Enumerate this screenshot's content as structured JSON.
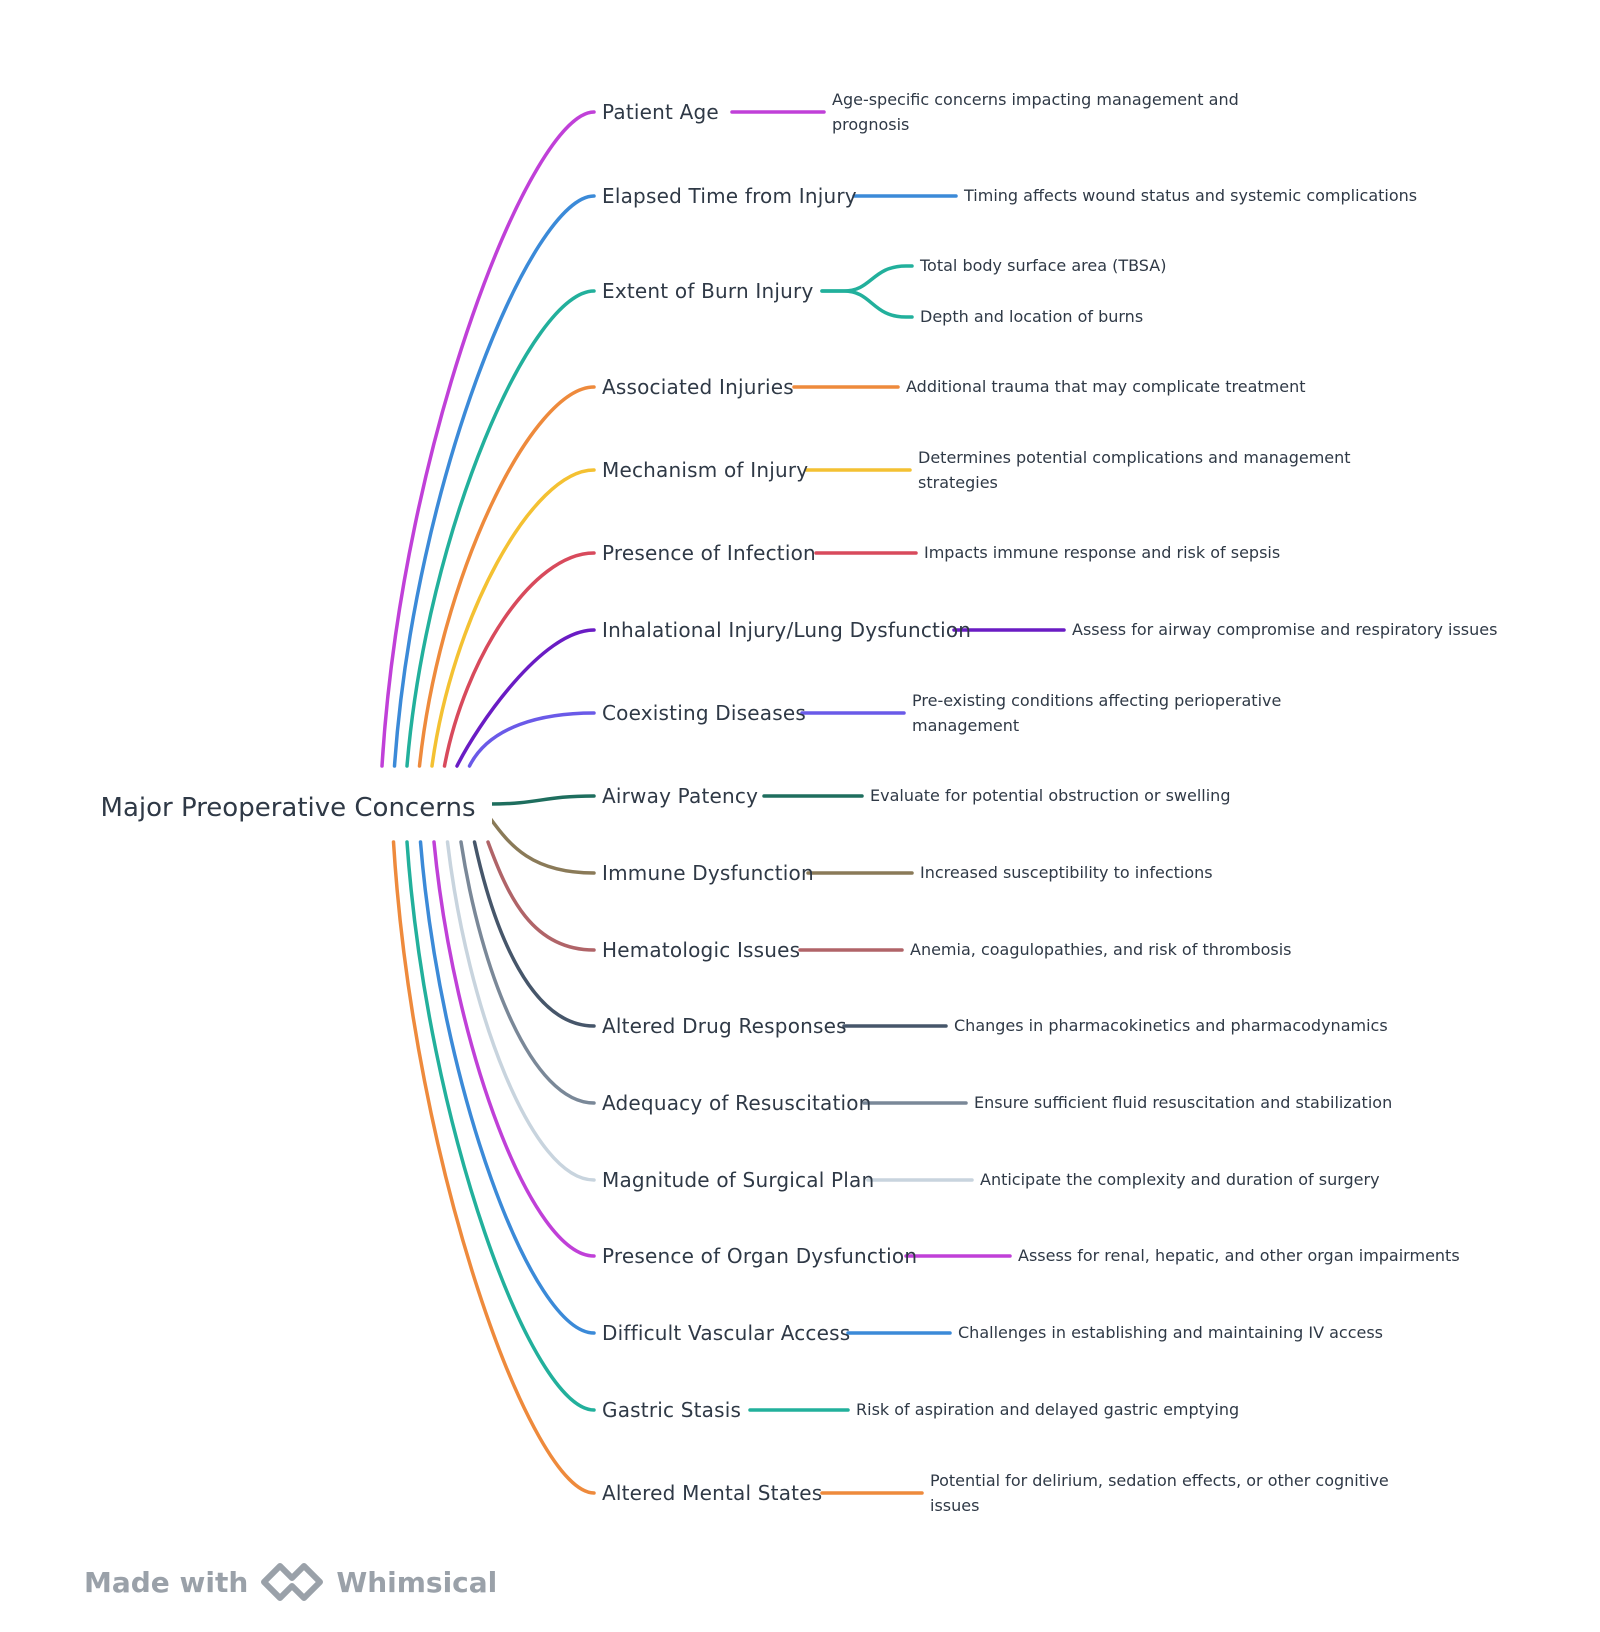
{
  "root": {
    "label": "Major Preoperative Concerns"
  },
  "topics": [
    {
      "label": "Patient Age",
      "color": "#c040d8",
      "details": [
        "Age-specific concerns impacting management and prognosis"
      ]
    },
    {
      "label": "Elapsed Time from Injury",
      "color": "#3b8ad8",
      "details": [
        "Timing affects wound status and systemic complications"
      ]
    },
    {
      "label": "Extent of Burn Injury",
      "color": "#22b09c",
      "details": [
        "Total body surface area (TBSA)",
        "Depth and location of burns"
      ]
    },
    {
      "label": "Associated Injuries",
      "color": "#ee8a3c",
      "details": [
        "Additional trauma that may complicate treatment"
      ]
    },
    {
      "label": "Mechanism of Injury",
      "color": "#f4c132",
      "details": [
        "Determines potential complications and management strategies"
      ]
    },
    {
      "label": "Presence of Infection",
      "color": "#d84a5c",
      "details": [
        "Impacts immune response and risk of sepsis"
      ]
    },
    {
      "label": "Inhalational Injury/Lung Dysfunction",
      "color": "#6a1cc4",
      "details": [
        "Assess for airway compromise and respiratory issues"
      ]
    },
    {
      "label": "Coexisting Diseases",
      "color": "#6a5ae8",
      "details": [
        "Pre-existing conditions affecting perioperative management"
      ]
    },
    {
      "label": "Airway Patency",
      "color": "#1e6e5e",
      "details": [
        "Evaluate for potential obstruction or swelling"
      ]
    },
    {
      "label": "Immune Dysfunction",
      "color": "#8a7a58",
      "details": [
        "Increased susceptibility to infections"
      ]
    },
    {
      "label": "Hematologic Issues",
      "color": "#b06468",
      "details": [
        "Anemia, coagulopathies, and risk of thrombosis"
      ]
    },
    {
      "label": "Altered Drug Responses",
      "color": "#46566a",
      "details": [
        "Changes in pharmacokinetics and pharmacodynamics"
      ]
    },
    {
      "label": "Adequacy of Resuscitation",
      "color": "#7a8898",
      "details": [
        "Ensure sufficient fluid resuscitation and stabilization"
      ]
    },
    {
      "label": "Magnitude of Surgical Plan",
      "color": "#c8d4de",
      "details": [
        "Anticipate the complexity and duration of surgery"
      ]
    },
    {
      "label": "Presence of Organ Dysfunction",
      "color": "#c040d8",
      "details": [
        "Assess for renal, hepatic, and other organ impairments"
      ]
    },
    {
      "label": "Difficult Vascular Access",
      "color": "#3b8ad8",
      "details": [
        "Challenges in establishing and maintaining IV access"
      ]
    },
    {
      "label": "Gastric Stasis",
      "color": "#22b09c",
      "details": [
        "Risk of aspiration and delayed gastric emptying"
      ]
    },
    {
      "label": "Altered Mental States",
      "color": "#ee8a3c",
      "details": [
        "Potential for delirium, sedation effects, or other cognitive issues"
      ]
    }
  ],
  "footer": {
    "made_with": "Made with",
    "brand": "Whimsical",
    "icon": "whimsical-logo-icon"
  }
}
